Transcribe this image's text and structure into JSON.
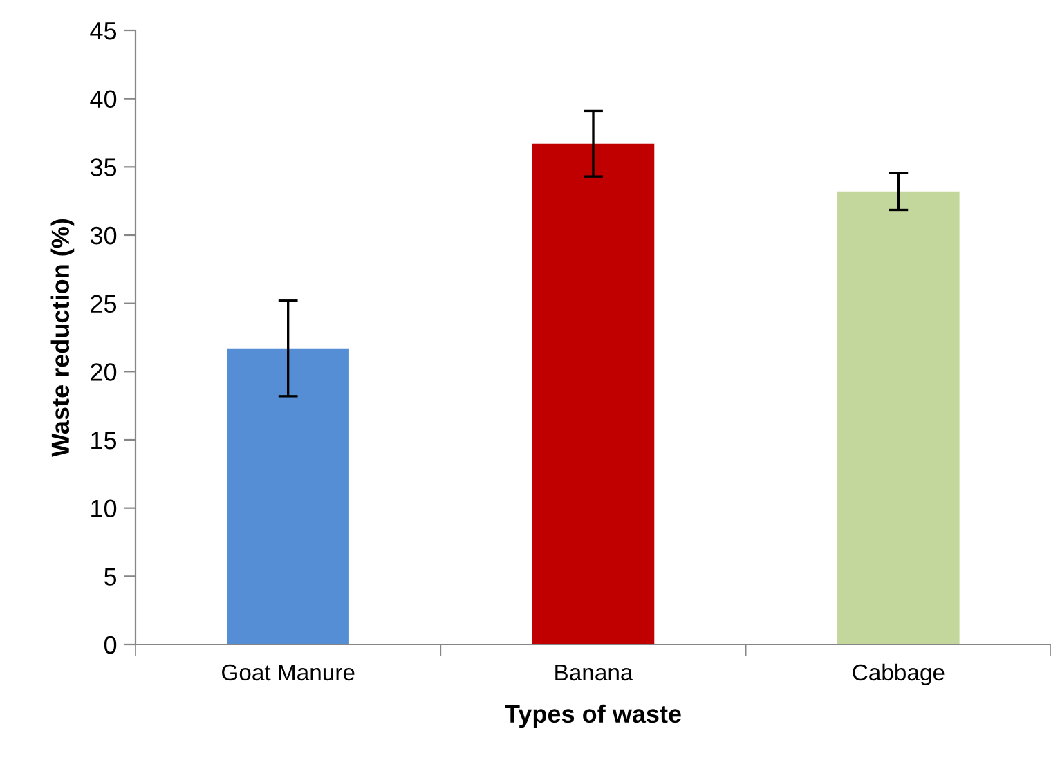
{
  "chart_data": {
    "type": "bar",
    "xlabel": "Types of waste",
    "ylabel": "Waste reduction (%)",
    "categories": [
      "Goat Manure",
      "Banana",
      "Cabbage"
    ],
    "values": [
      21.7,
      36.7,
      33.2
    ],
    "errors": [
      3.5,
      2.4,
      1.35
    ],
    "colors": [
      "#558ed5",
      "#c00000",
      "#c3d69b"
    ],
    "ylim": [
      0,
      45
    ],
    "yticks": [
      0,
      5,
      10,
      15,
      20,
      25,
      30,
      35,
      40,
      45
    ],
    "grid": false,
    "legend": false
  }
}
